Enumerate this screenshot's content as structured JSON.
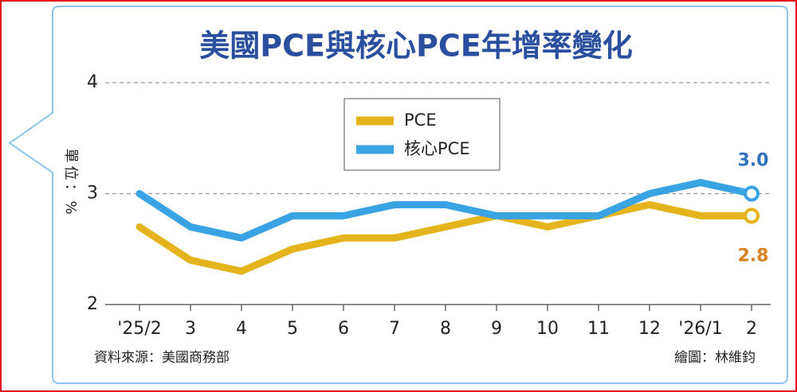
{
  "chart_data": {
    "type": "line",
    "title": "美國PCE與核心PCE年增率變化",
    "y_label": "單位：%",
    "source": "資料來源：美國商務部",
    "credit": "繪圖：林維鈞",
    "categories": [
      "'25/2",
      "3",
      "4",
      "5",
      "6",
      "7",
      "8",
      "9",
      "10",
      "11",
      "12",
      "'26/1",
      "2"
    ],
    "series": [
      {
        "name": "PCE",
        "color": "#e5b41c",
        "label_color": "#d9821e",
        "values": [
          2.7,
          2.4,
          2.3,
          2.5,
          2.6,
          2.6,
          2.7,
          2.8,
          2.7,
          2.8,
          2.9,
          2.8,
          2.8
        ],
        "value_labels": [
          null,
          null,
          null,
          null,
          null,
          null,
          null,
          null,
          null,
          null,
          null,
          null,
          "2.8"
        ]
      },
      {
        "name": "核心PCE",
        "color": "#3aa3e3",
        "label_color": "#2f72bd",
        "values": [
          3.0,
          2.7,
          2.6,
          2.8,
          2.8,
          2.9,
          2.9,
          2.8,
          2.8,
          2.8,
          3.0,
          3.1,
          3.0
        ],
        "value_labels": [
          null,
          null,
          null,
          null,
          null,
          null,
          null,
          null,
          null,
          null,
          null,
          null,
          "3.0"
        ]
      }
    ],
    "ylim": [
      2,
      4
    ],
    "yticks": [
      2,
      3,
      4
    ],
    "grid": true
  }
}
